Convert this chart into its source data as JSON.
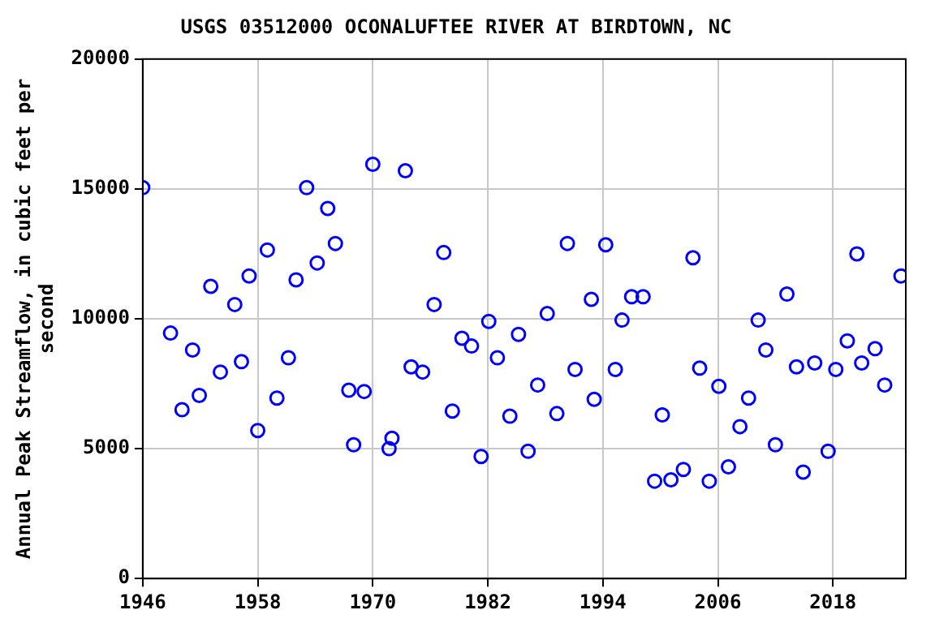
{
  "chart_data": {
    "type": "scatter",
    "title": "USGS 03512000 OCONALUFTEE RIVER AT BIRDTOWN, NC",
    "ylabel": "Annual Peak Streamflow, in cubic feet per second",
    "x": [
      1946.0,
      1948.9,
      1950.1,
      1951.2,
      1951.9,
      1953.1,
      1954.1,
      1955.6,
      1956.3,
      1957.1,
      1958.0,
      1959.0,
      1960.0,
      1961.2,
      1962.0,
      1963.1,
      1964.2,
      1965.3,
      1966.1,
      1967.5,
      1968.0,
      1969.1,
      1970.0,
      1971.7,
      1972.0,
      1973.4,
      1974.0,
      1975.2,
      1976.4,
      1977.4,
      1978.3,
      1979.3,
      1980.3,
      1981.3,
      1982.1,
      1983.0,
      1984.3,
      1985.2,
      1986.2,
      1987.2,
      1988.2,
      1989.2,
      1990.3,
      1991.1,
      1992.8,
      1993.1,
      1994.3,
      1995.3,
      1996.0,
      1997.0,
      1998.2,
      1999.4,
      2000.2,
      2001.1,
      2002.4,
      2003.4,
      2004.1,
      2005.1,
      2006.1,
      2007.1,
      2008.3,
      2009.2,
      2010.2,
      2011.0,
      2012.0,
      2013.2,
      2014.2,
      2014.9,
      2016.1,
      2017.5,
      2018.3,
      2019.5,
      2020.5,
      2021.0,
      2022.4,
      2023.4,
      2025.1
    ],
    "series": [
      {
        "color": "#0000ff",
        "values": [
          15050,
          9450,
          6500,
          8800,
          7050,
          11250,
          7950,
          10550,
          8350,
          11650,
          5700,
          12650,
          6950,
          8500,
          11500,
          15050,
          12150,
          14250,
          12900,
          7250,
          5150,
          7200,
          15950,
          5000,
          5400,
          15700,
          8150,
          7950,
          10550,
          12550,
          6450,
          9250,
          8950,
          4700,
          9900,
          8500,
          6250,
          9400,
          4900,
          7450,
          10200,
          6350,
          12900,
          8050,
          10750,
          6900,
          12850,
          8050,
          9950,
          10850,
          10850,
          3750,
          6300,
          3800,
          4200,
          12350,
          8100,
          3750,
          7400,
          4300,
          5850,
          6950,
          9950,
          8800,
          5150,
          10950,
          8150,
          4100,
          8300,
          4900,
          8050,
          9150,
          12500,
          8300,
          8850,
          7450,
          11650
        ]
      }
    ],
    "xlim": [
      1946,
      2025.6
    ],
    "xticks": [
      1946,
      1958,
      1970,
      1982,
      1994,
      2006,
      2018
    ],
    "ylim": [
      0,
      20000
    ],
    "yticks": [
      0,
      5000,
      10000,
      15000,
      20000
    ],
    "grid": true,
    "legend": false,
    "marker": "circle"
  }
}
